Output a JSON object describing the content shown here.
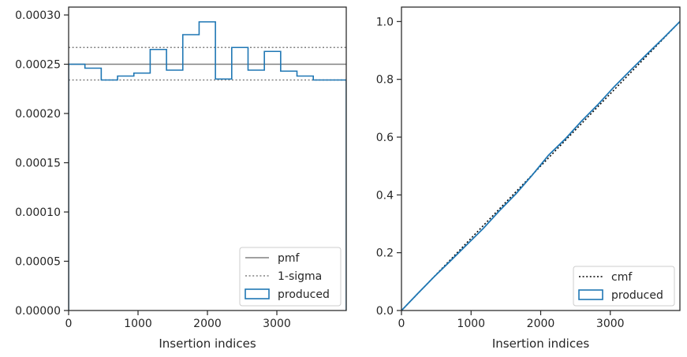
{
  "chart_data": [
    {
      "type": "line",
      "xlabel": "Insertion indices",
      "ylabel": "",
      "xlim": [
        0,
        4000
      ],
      "ylim": [
        0,
        0.000308
      ],
      "xticks": [
        0,
        1000,
        2000,
        3000
      ],
      "xtick_labels": [
        "0",
        "1000",
        "2000",
        "3000"
      ],
      "yticks": [
        0,
        5e-05,
        0.0001,
        0.00015,
        0.0002,
        0.00025,
        0.0003
      ],
      "ytick_labels": [
        "0.00000",
        "0.00005",
        "0.00010",
        "0.00015",
        "0.00020",
        "0.00025",
        "0.00030"
      ],
      "grid": false,
      "legend_position": "lower-right",
      "series": [
        {
          "name": "pmf",
          "kind": "hline",
          "y": 0.00025,
          "color": "#808080",
          "style": "solid"
        },
        {
          "name": "1-sigma",
          "kind": "hlines",
          "y": [
            0.000267,
            0.000234
          ],
          "color": "#808080",
          "style": "dotted"
        },
        {
          "name": "produced",
          "kind": "step-histogram",
          "color": "#1f77b4",
          "bin_edges": [
            0,
            235,
            470,
            705,
            940,
            1175,
            1410,
            1645,
            1880,
            2115,
            2350,
            2585,
            2820,
            3055,
            3290,
            3525,
            3760,
            4000
          ],
          "values": [
            0.00025,
            0.000246,
            0.000234,
            0.000238,
            0.000241,
            0.000265,
            0.000244,
            0.00028,
            0.000293,
            0.000235,
            0.000267,
            0.000244,
            0.000263,
            0.000243,
            0.000238,
            0.000234,
            0.000234
          ]
        }
      ]
    },
    {
      "type": "line",
      "xlabel": "Insertion indices",
      "ylabel": "",
      "xlim": [
        0,
        4000
      ],
      "ylim": [
        0,
        1.05
      ],
      "xticks": [
        0,
        1000,
        2000,
        3000
      ],
      "xtick_labels": [
        "0",
        "1000",
        "2000",
        "3000"
      ],
      "yticks": [
        0,
        0.2,
        0.4,
        0.6,
        0.8,
        1.0
      ],
      "ytick_labels": [
        "0.0",
        "0.2",
        "0.4",
        "0.6",
        "0.8",
        "1.0"
      ],
      "grid": false,
      "legend_position": "lower-right",
      "series": [
        {
          "name": "cmf",
          "kind": "line",
          "color": "#000000",
          "style": "dotted",
          "x": [
            0,
            4000
          ],
          "y": [
            0,
            1.0
          ]
        },
        {
          "name": "produced",
          "kind": "line",
          "color": "#1f77b4",
          "style": "solid",
          "x": [
            0,
            235,
            470,
            705,
            940,
            1175,
            1410,
            1645,
            1880,
            2115,
            2350,
            2585,
            2820,
            3055,
            3290,
            3525,
            3760,
            4000
          ],
          "y": [
            0,
            0.059,
            0.117,
            0.172,
            0.228,
            0.284,
            0.346,
            0.404,
            0.469,
            0.538,
            0.593,
            0.655,
            0.712,
            0.774,
            0.831,
            0.887,
            0.942,
            1.0
          ]
        }
      ]
    }
  ]
}
